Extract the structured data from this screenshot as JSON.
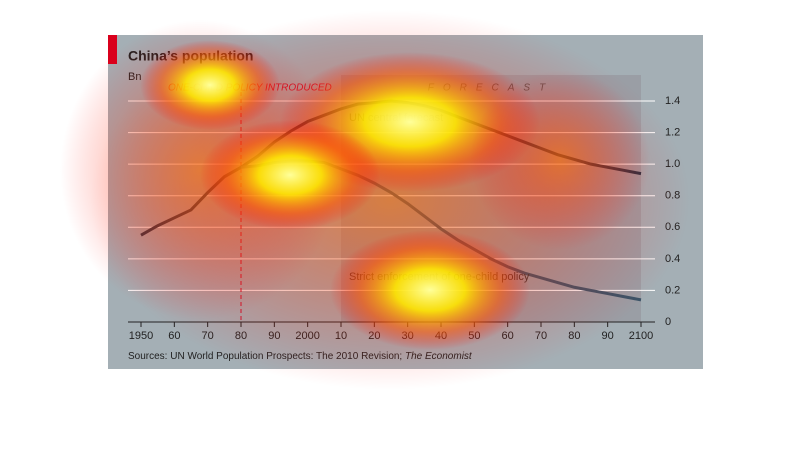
{
  "chart_data": {
    "type": "line",
    "title": "China’s population",
    "unit_label": "Bn",
    "source": "Sources: UN World Population Prospects: The 2010 Revision; ",
    "source_italic": "The Economist",
    "x": [
      1950,
      1955,
      1960,
      1965,
      1970,
      1975,
      1980,
      1985,
      1990,
      1995,
      2000,
      2005,
      2010,
      2015,
      2020,
      2025,
      2030,
      2035,
      2040,
      2045,
      2050,
      2055,
      2060,
      2065,
      2070,
      2075,
      2080,
      2085,
      2090,
      2095,
      2100
    ],
    "series": [
      {
        "name": "UN central forecast",
        "color": "#1e3547",
        "values": [
          0.55,
          0.61,
          0.66,
          0.71,
          0.82,
          0.92,
          0.98,
          1.05,
          1.14,
          1.21,
          1.27,
          1.31,
          1.35,
          1.38,
          1.39,
          1.4,
          1.39,
          1.37,
          1.34,
          1.3,
          1.26,
          1.22,
          1.18,
          1.14,
          1.1,
          1.06,
          1.03,
          1.0,
          0.98,
          0.96,
          0.94
        ]
      },
      {
        "name": "Strict enforcement of one-child policy",
        "color": "#3a5468",
        "values": [
          null,
          null,
          null,
          null,
          null,
          null,
          0.98,
          0.99,
          1.01,
          1.02,
          1.02,
          1.01,
          0.97,
          0.93,
          0.88,
          0.82,
          0.75,
          0.67,
          0.59,
          0.52,
          0.46,
          0.4,
          0.35,
          0.31,
          0.28,
          0.25,
          0.22,
          0.2,
          0.18,
          0.16,
          0.14
        ]
      }
    ],
    "annotations": [
      {
        "text": "ONE-CHILD POLICY INTRODUCED",
        "x": 1980
      },
      {
        "text": "FORECAST",
        "x": 2010
      }
    ],
    "xlim": [
      1950,
      2100
    ],
    "xticks": [
      1950,
      {
        "value": 1960,
        "label": "60"
      },
      {
        "value": 1970,
        "label": "70"
      },
      {
        "value": 1980,
        "label": "80"
      },
      {
        "value": 1990,
        "label": "90"
      },
      2000,
      {
        "value": 2010,
        "label": "10"
      },
      {
        "value": 2020,
        "label": "20"
      },
      {
        "value": 2030,
        "label": "30"
      },
      {
        "value": 2040,
        "label": "40"
      },
      {
        "value": 2050,
        "label": "50"
      },
      {
        "value": 2060,
        "label": "60"
      },
      {
        "value": 2070,
        "label": "70"
      },
      {
        "value": 2080,
        "label": "80"
      },
      {
        "value": 2090,
        "label": "90"
      },
      2100
    ],
    "ylim": [
      0,
      1.4
    ],
    "yticks": [
      0,
      0.2,
      0.4,
      0.6,
      0.8,
      {
        "value": 1,
        "label": "1.0"
      },
      1.2,
      1.4
    ],
    "grid": true
  }
}
